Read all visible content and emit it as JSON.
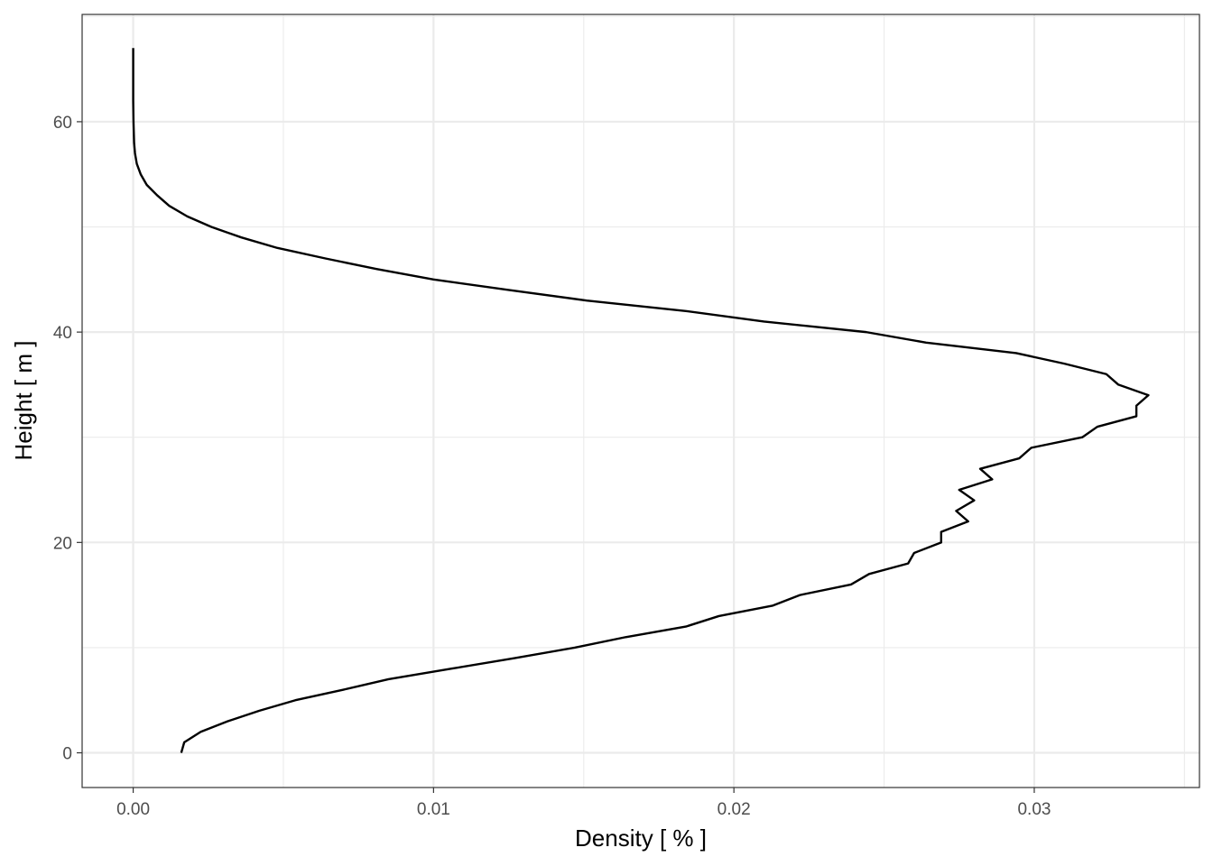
{
  "chart_data": {
    "type": "line",
    "title": "",
    "xlabel": "Density [ % ]",
    "ylabel": "Height [ m ]",
    "xlim": [
      -0.0017,
      0.0355
    ],
    "ylim": [
      -3.3,
      70.2
    ],
    "x_ticks": [
      0.0,
      0.01,
      0.02,
      0.03
    ],
    "x_tick_labels": [
      "0.00",
      "0.01",
      "0.02",
      "0.03"
    ],
    "y_ticks": [
      0,
      20,
      40,
      60
    ],
    "y_tick_labels": [
      "0",
      "20",
      "40",
      "60"
    ],
    "grid": true,
    "line_color": "#000000",
    "series": [
      {
        "points": [
          [
            0.0016,
            0
          ],
          [
            0.0017,
            1
          ],
          [
            0.00225,
            2
          ],
          [
            0.00315,
            3
          ],
          [
            0.0042,
            4
          ],
          [
            0.0054,
            5
          ],
          [
            0.007,
            6
          ],
          [
            0.0085,
            7
          ],
          [
            0.0106,
            8
          ],
          [
            0.0127,
            9
          ],
          [
            0.0147,
            10
          ],
          [
            0.0164,
            11
          ],
          [
            0.0184,
            12
          ],
          [
            0.0195,
            13
          ],
          [
            0.0213,
            14
          ],
          [
            0.0222,
            15
          ],
          [
            0.0239,
            16
          ],
          [
            0.0245,
            17
          ],
          [
            0.0258,
            18
          ],
          [
            0.026,
            19
          ],
          [
            0.0269,
            20
          ],
          [
            0.0269,
            21
          ],
          [
            0.0278,
            22
          ],
          [
            0.0274,
            23
          ],
          [
            0.028,
            24
          ],
          [
            0.0275,
            25
          ],
          [
            0.0286,
            26
          ],
          [
            0.0282,
            27
          ],
          [
            0.0295,
            28
          ],
          [
            0.0299,
            29
          ],
          [
            0.0316,
            30
          ],
          [
            0.0321,
            31
          ],
          [
            0.0334,
            32
          ],
          [
            0.0334,
            33
          ],
          [
            0.0338,
            34
          ],
          [
            0.0328,
            35
          ],
          [
            0.0324,
            36
          ],
          [
            0.031,
            37
          ],
          [
            0.0294,
            38
          ],
          [
            0.0264,
            39
          ],
          [
            0.0244,
            40
          ],
          [
            0.021,
            41
          ],
          [
            0.0184,
            42
          ],
          [
            0.0151,
            43
          ],
          [
            0.0125,
            44
          ],
          [
            0.01,
            45
          ],
          [
            0.0081,
            46
          ],
          [
            0.0064,
            47
          ],
          [
            0.0048,
            48
          ],
          [
            0.0036,
            49
          ],
          [
            0.0026,
            50
          ],
          [
            0.0018,
            51
          ],
          [
            0.0012,
            52
          ],
          [
            0.0008,
            53
          ],
          [
            0.00045,
            54
          ],
          [
            0.00025,
            55
          ],
          [
            0.00012,
            56
          ],
          [
            6e-05,
            57
          ],
          [
            3e-05,
            58
          ],
          [
            2e-05,
            59
          ],
          [
            1e-05,
            60
          ],
          [
            0.0,
            62
          ],
          [
            0.0,
            64
          ],
          [
            0.0,
            67
          ]
        ]
      }
    ]
  }
}
